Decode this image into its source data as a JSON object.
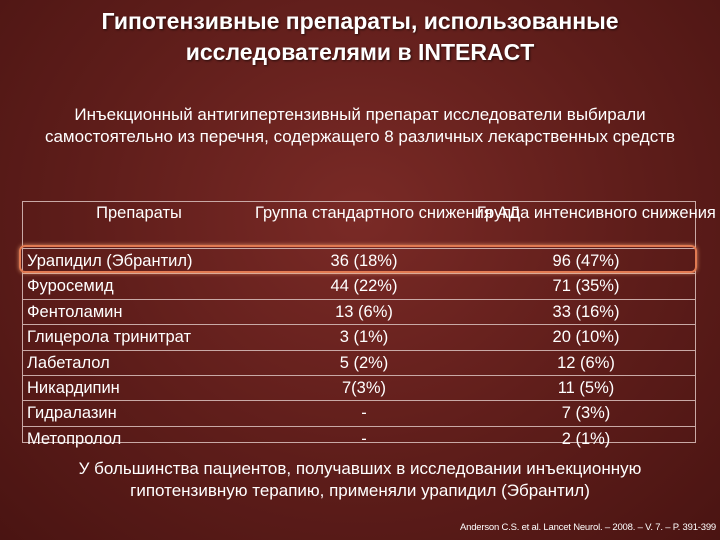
{
  "slide": {
    "title": "Гипотензивные препараты, использованные исследователями в INTERACT",
    "intro": "Инъекционный антигипертензивный препарат исследователи выбирали самостоятельно из перечня, содержащего 8 различных лекарственных средств",
    "table": {
      "headers": [
        "Препараты",
        "Группа стандартного снижения АД",
        "Группа интенсивного снижения АД"
      ],
      "rows": [
        [
          "Урапидил (Эбрантил)",
          "36 (18%)",
          "96 (47%)"
        ],
        [
          "Фуросемид",
          "44 (22%)",
          "71 (35%)"
        ],
        [
          "Фентоламин",
          "13 (6%)",
          "33 (16%)"
        ],
        [
          "Глицерола тринитрат",
          "3 (1%)",
          "20 (10%)"
        ],
        [
          "Лабеталол",
          "5 (2%)",
          "12 (6%)"
        ],
        [
          "Никардипин",
          "7(3%)",
          "11 (5%)"
        ],
        [
          "Гидралазин",
          "-",
          "7 (3%)"
        ],
        [
          "Метопролол",
          "-",
          "2 (1%)"
        ]
      ]
    },
    "conclusion": "У большинства пациентов, получавших в исследовании инъекционную гипотензивную терапию, применяли урапидил (Эбрантил)",
    "reference": "Anderson C.S. et al. Lancet Neurol. – 2008. – V. 7. – P. 391-399",
    "colors": {
      "background": "#5e1d1a",
      "highlight_border": "#e27a52",
      "text": "#ffffff"
    }
  }
}
